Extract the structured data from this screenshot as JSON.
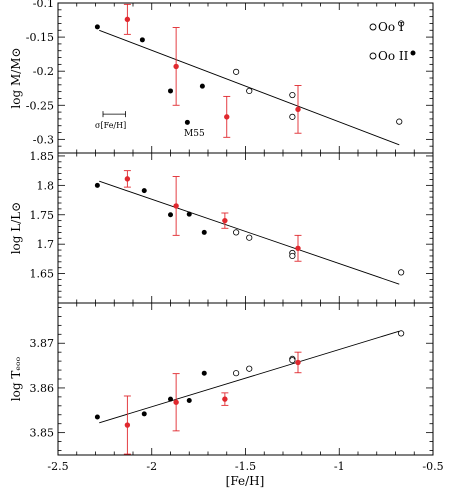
{
  "chart_data": [
    {
      "type": "scatter",
      "ylabel": "log M/M⊙",
      "xlim": [
        -2.5,
        -0.5
      ],
      "ylim": [
        -0.32,
        -0.1
      ],
      "yticks": [
        -0.3,
        -0.25,
        -0.2,
        -0.15,
        -0.1
      ],
      "ytick_labels": [
        "-0.3",
        "-0.25",
        "-0.2",
        "-0.15",
        "-0.1"
      ],
      "series": [
        {
          "name": "Oo I",
          "marker": "open-circle",
          "x": [
            -1.55,
            -1.48,
            -1.25,
            -1.25,
            -0.68,
            -0.67
          ],
          "y": [
            -0.201,
            -0.229,
            -0.235,
            -0.267,
            -0.274,
            -0.13
          ]
        },
        {
          "name": "Oo II",
          "marker": "filled-circle",
          "x": [
            -2.29,
            -2.05,
            -1.9,
            -1.81,
            -1.73
          ],
          "y": [
            -0.135,
            -0.154,
            -0.229,
            -0.275,
            -0.222
          ]
        },
        {
          "name": "",
          "marker": "red-error",
          "x": [
            -2.13,
            -1.87,
            -1.6,
            -1.22
          ],
          "y": [
            -0.124,
            -0.193,
            -0.267,
            -0.256
          ],
          "yerr": [
            0.022,
            0.057,
            0.03,
            0.035
          ]
        }
      ],
      "fit_line": {
        "x": [
          -2.28,
          -0.68
        ],
        "y": [
          -0.14,
          -0.308
        ]
      },
      "annotations": [
        "σ[Fe/H]",
        "M55"
      ],
      "error_bar_key": {
        "x_center": -2.2,
        "y": -0.263,
        "half_width": 0.06
      }
    },
    {
      "type": "scatter",
      "ylabel": "log L/L⊙",
      "xlim": [
        -2.5,
        -0.5
      ],
      "ylim": [
        1.6,
        1.855
      ],
      "yticks": [
        1.65,
        1.7,
        1.75,
        1.8,
        1.85
      ],
      "ytick_labels": [
        "1.65",
        "1.7",
        "1.75",
        "1.8",
        "1.85"
      ],
      "series": [
        {
          "name": "Oo I",
          "marker": "open-circle",
          "x": [
            -1.55,
            -1.48,
            -1.25,
            -1.25,
            -0.67
          ],
          "y": [
            1.72,
            1.711,
            1.685,
            1.68,
            1.652
          ]
        },
        {
          "name": "Oo II",
          "marker": "filled-circle",
          "x": [
            -2.29,
            -2.04,
            -1.9,
            -1.8,
            -1.72
          ],
          "y": [
            1.8,
            1.791,
            1.75,
            1.751,
            1.72
          ]
        },
        {
          "name": "",
          "marker": "red-error",
          "x": [
            -2.13,
            -1.87,
            -1.61,
            -1.22
          ],
          "y": [
            1.811,
            1.765,
            1.74,
            1.693
          ],
          "yerr": [
            0.014,
            0.05,
            0.013,
            0.022
          ]
        }
      ],
      "fit_line": {
        "x": [
          -2.28,
          -0.68
        ],
        "y": [
          1.807,
          1.632
        ]
      }
    },
    {
      "type": "scatter",
      "ylabel": "log Tₑₒₒ",
      "xlabel": "[Fe/H]",
      "xlim": [
        -2.5,
        -0.5
      ],
      "ylim": [
        3.845,
        3.879
      ],
      "yticks": [
        3.85,
        3.86,
        3.87
      ],
      "ytick_labels": [
        "3.85",
        "3.86",
        "3.87"
      ],
      "xticks": [
        -2.5,
        -2,
        -1.5,
        -1,
        -0.5
      ],
      "xtick_labels": [
        "-2.5",
        "-2",
        "-1.5",
        "-1",
        "-0.5"
      ],
      "series": [
        {
          "name": "Oo I",
          "marker": "open-circle",
          "x": [
            -1.55,
            -1.48,
            -1.25,
            -1.25,
            -0.67
          ],
          "y": [
            3.8633,
            3.8643,
            3.8665,
            3.8662,
            3.8722
          ]
        },
        {
          "name": "Oo II",
          "marker": "filled-circle",
          "x": [
            -2.29,
            -2.04,
            -1.9,
            -1.8,
            -1.72
          ],
          "y": [
            3.8535,
            3.8542,
            3.8575,
            3.8572,
            3.8633
          ]
        },
        {
          "name": "",
          "marker": "red-error",
          "x": [
            -2.13,
            -1.87,
            -1.61,
            -1.22
          ],
          "y": [
            3.8517,
            3.8568,
            3.8575,
            3.8657
          ],
          "yerr": [
            0.0065,
            0.0064,
            0.0014,
            0.0023
          ]
        }
      ],
      "fit_line": {
        "x": [
          -2.28,
          -0.68
        ],
        "y": [
          3.8522,
          3.8727
        ]
      }
    }
  ]
}
